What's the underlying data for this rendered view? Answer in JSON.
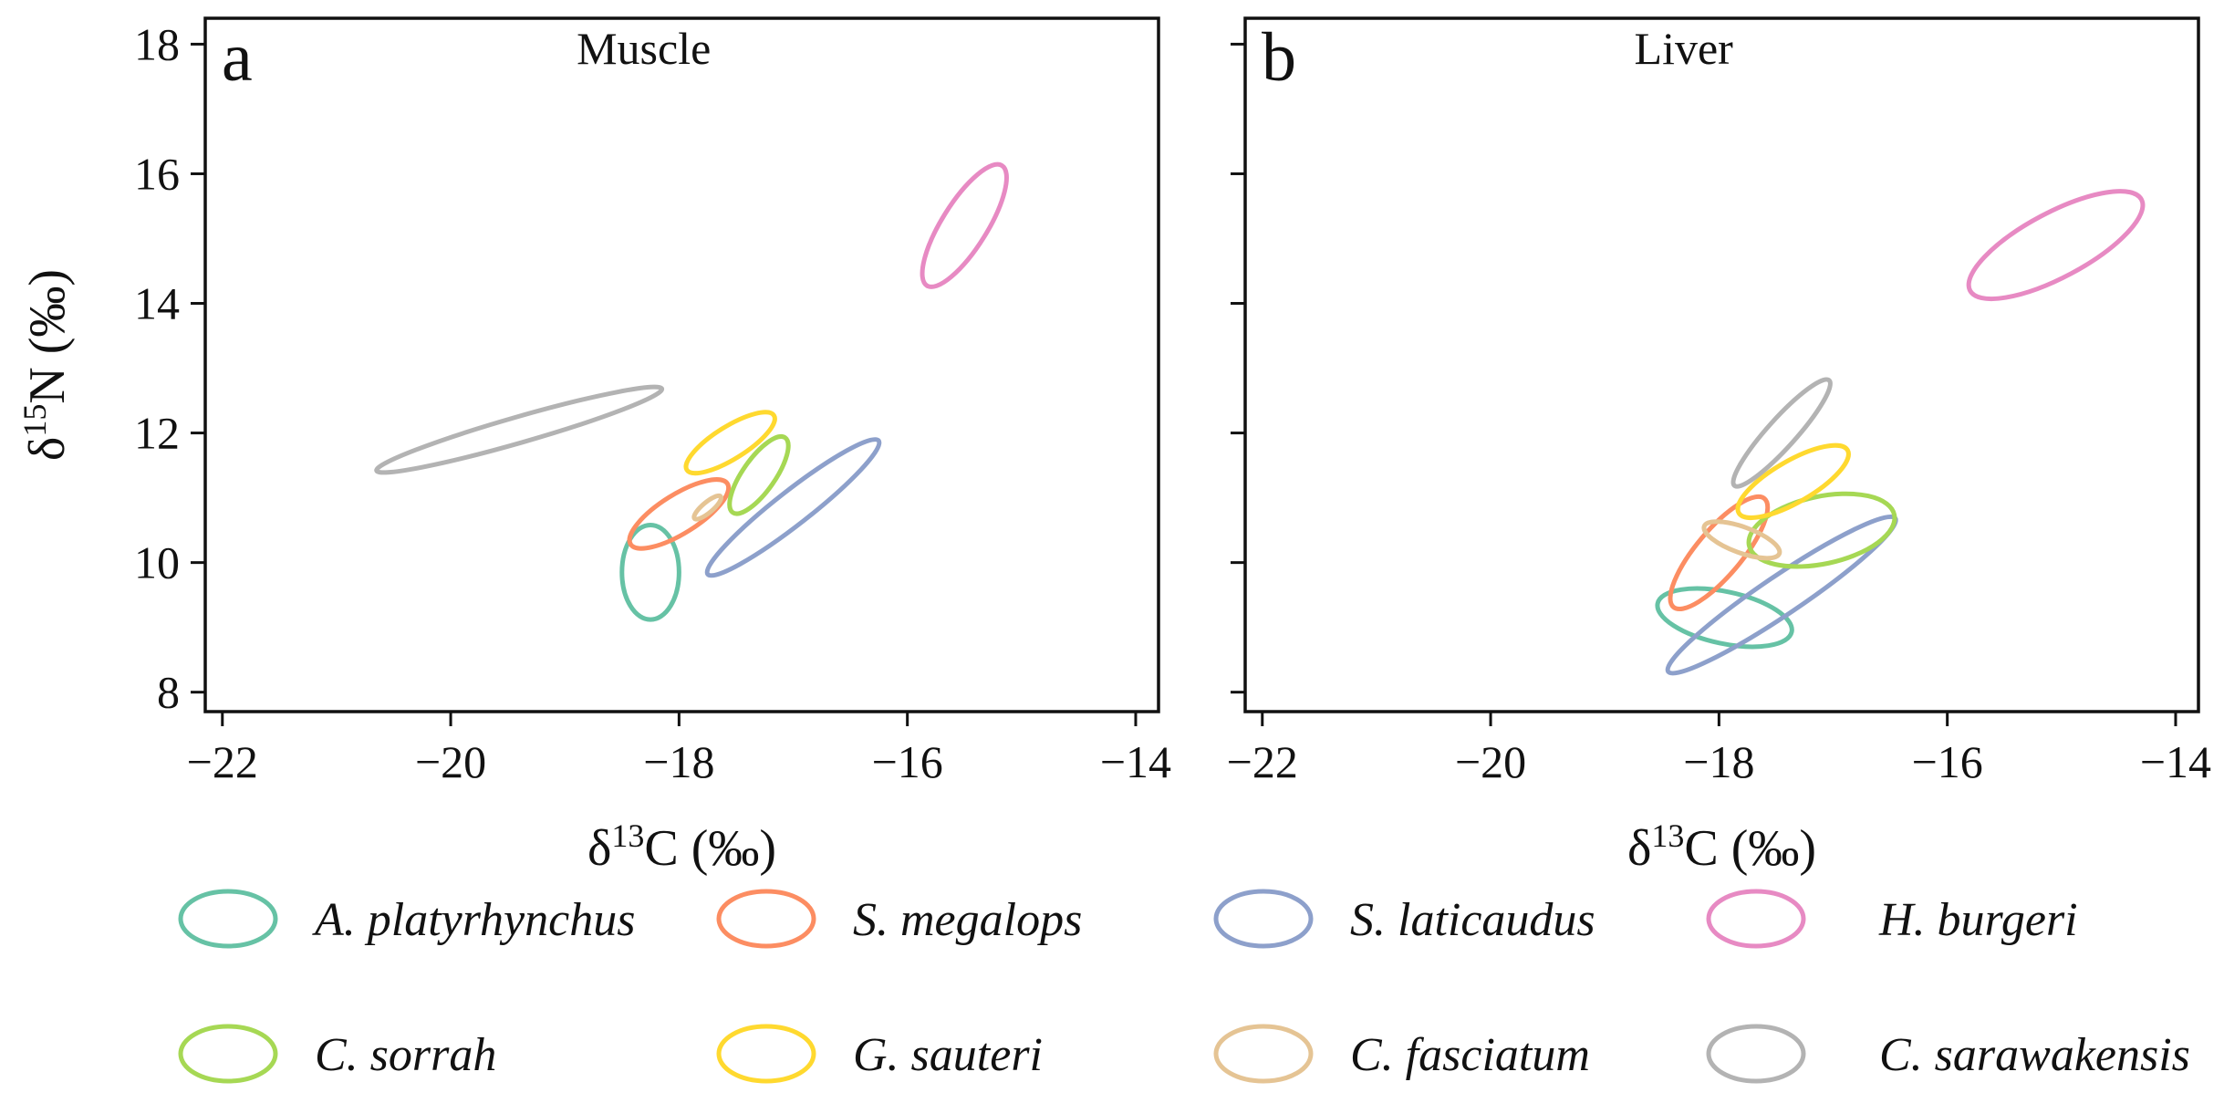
{
  "chart_data": [
    {
      "type": "scatter",
      "panel_letter": "a",
      "title": "Muscle",
      "xlabel": "δ13C (‰)",
      "ylabel": "δ15N (‰)",
      "xlim": [
        -22.15,
        -13.8
      ],
      "ylim": [
        7.7,
        18.4
      ],
      "x_ticks": [
        -22,
        -20,
        -18,
        -16,
        -14
      ],
      "y_ticks": [
        8,
        10,
        12,
        14,
        16,
        18
      ],
      "series": [
        {
          "name": "A. platyrhynchus",
          "color": "#66c2a5",
          "ellipse": {
            "cx": -18.25,
            "cy": 9.85,
            "rx": 0.25,
            "ry": 0.73,
            "angle": 0
          }
        },
        {
          "name": "S. megalops",
          "color": "#fc8d62",
          "ellipse": {
            "cx": -18.0,
            "cy": 10.75,
            "rx": 0.5,
            "ry": 0.3,
            "angle": 32
          }
        },
        {
          "name": "S. laticaudus",
          "color": "#8da0cb",
          "ellipse": {
            "cx": -17.0,
            "cy": 10.85,
            "rx": 0.95,
            "ry": 0.26,
            "angle": 38
          }
        },
        {
          "name": "H. burgeri",
          "color": "#e78ac3",
          "ellipse": {
            "cx": -15.5,
            "cy": 15.2,
            "rx": 0.62,
            "ry": 0.35,
            "angle": 58
          }
        },
        {
          "name": "C. sorrah",
          "color": "#a6d854",
          "ellipse": {
            "cx": -17.3,
            "cy": 11.35,
            "rx": 0.4,
            "ry": 0.25,
            "angle": 55
          }
        },
        {
          "name": "G. sauteri",
          "color": "#ffd92f",
          "ellipse": {
            "cx": -17.55,
            "cy": 11.85,
            "rx": 0.45,
            "ry": 0.25,
            "angle": 32
          }
        },
        {
          "name": "C. fasciatum",
          "color": "#e5c494",
          "ellipse": {
            "cx": -17.75,
            "cy": 10.85,
            "rx": 0.15,
            "ry": 0.08,
            "angle": 40
          }
        },
        {
          "name": "C. sarawakensis",
          "color": "#b3b3b3",
          "ellipse": {
            "cx": -19.4,
            "cy": 12.05,
            "rx": 1.3,
            "ry": 0.2,
            "angle": 16
          }
        }
      ]
    },
    {
      "type": "scatter",
      "panel_letter": "b",
      "title": "Liver",
      "xlabel": "δ13C (‰)",
      "ylabel": "",
      "xlim": [
        -22.15,
        -13.8
      ],
      "ylim": [
        7.7,
        18.4
      ],
      "x_ticks": [
        -22,
        -20,
        -18,
        -16,
        -14
      ],
      "y_ticks": [
        8,
        10,
        12,
        14,
        16,
        18
      ],
      "series": [
        {
          "name": "A. platyrhynchus",
          "color": "#66c2a5",
          "ellipse": {
            "cx": -17.95,
            "cy": 9.15,
            "rx": 0.6,
            "ry": 0.4,
            "angle": -12
          }
        },
        {
          "name": "S. megalops",
          "color": "#fc8d62",
          "ellipse": {
            "cx": -18.0,
            "cy": 10.15,
            "rx": 0.62,
            "ry": 0.35,
            "angle": 50
          }
        },
        {
          "name": "S. laticaudus",
          "color": "#8da0cb",
          "ellipse": {
            "cx": -17.45,
            "cy": 9.5,
            "rx": 1.2,
            "ry": 0.3,
            "angle": 34
          }
        },
        {
          "name": "H. burgeri",
          "color": "#e78ac3",
          "ellipse": {
            "cx": -15.05,
            "cy": 14.9,
            "rx": 0.85,
            "ry": 0.5,
            "angle": 28
          }
        },
        {
          "name": "C. sorrah",
          "color": "#a6d854",
          "ellipse": {
            "cx": -17.1,
            "cy": 10.5,
            "rx": 0.65,
            "ry": 0.52,
            "angle": 12
          }
        },
        {
          "name": "G. sauteri",
          "color": "#ffd92f",
          "ellipse": {
            "cx": -17.35,
            "cy": 11.25,
            "rx": 0.55,
            "ry": 0.32,
            "angle": 30
          }
        },
        {
          "name": "C. fasciatum",
          "color": "#e5c494",
          "ellipse": {
            "cx": -17.8,
            "cy": 10.35,
            "rx": 0.35,
            "ry": 0.2,
            "angle": -20
          }
        },
        {
          "name": "C. sarawakensis",
          "color": "#b3b3b3",
          "ellipse": {
            "cx": -17.45,
            "cy": 12.0,
            "rx": 0.62,
            "ry": 0.22,
            "angle": 48
          }
        }
      ]
    }
  ],
  "legend": {
    "placement": "bottom",
    "entries": [
      {
        "label": "A. platyrhynchus",
        "color": "#66c2a5"
      },
      {
        "label": "S. megalops",
        "color": "#fc8d62"
      },
      {
        "label": "S. laticaudus",
        "color": "#8da0cb"
      },
      {
        "label": "H. burgeri",
        "color": "#e78ac3"
      },
      {
        "label": "C. sorrah",
        "color": "#a6d854"
      },
      {
        "label": "G. sauteri",
        "color": "#ffd92f"
      },
      {
        "label": "C. fasciatum",
        "color": "#e5c494"
      },
      {
        "label": "C. sarawakensis",
        "color": "#b3b3b3"
      }
    ]
  }
}
